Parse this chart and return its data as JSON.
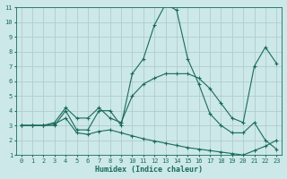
{
  "xlabel": "Humidex (Indice chaleur)",
  "xlim": [
    -0.5,
    23.5
  ],
  "ylim": [
    1,
    11
  ],
  "xticks": [
    0,
    1,
    2,
    3,
    4,
    5,
    6,
    7,
    8,
    9,
    10,
    11,
    12,
    13,
    14,
    15,
    16,
    17,
    18,
    19,
    20,
    21,
    22,
    23
  ],
  "yticks": [
    1,
    2,
    3,
    4,
    5,
    6,
    7,
    8,
    9,
    10,
    11
  ],
  "background_color": "#cce8e8",
  "line_color": "#1a6b5a",
  "grid_color": "#b0cccc",
  "line1_x": [
    0,
    1,
    2,
    3,
    4,
    5,
    6,
    7,
    8,
    9,
    10,
    11,
    12,
    13,
    14,
    15,
    16,
    17,
    18,
    19,
    20,
    21,
    22,
    23
  ],
  "line1_y": [
    3,
    3,
    3,
    3,
    4,
    2.7,
    2.7,
    4,
    4,
    3,
    6.5,
    7.5,
    9.8,
    11.2,
    10.8,
    7.5,
    5.8,
    3.8,
    3,
    2.5,
    2.5,
    3.2,
    2,
    1.4
  ],
  "line2_x": [
    0,
    1,
    2,
    3,
    4,
    5,
    6,
    7,
    8,
    9,
    10,
    11,
    12,
    13,
    14,
    15,
    16,
    17,
    18,
    19,
    20,
    21,
    22,
    23
  ],
  "line2_y": [
    3,
    3,
    3,
    3.2,
    4.2,
    3.5,
    3.5,
    4.2,
    3.5,
    3.2,
    5.0,
    5.8,
    6.2,
    6.5,
    6.5,
    6.5,
    6.2,
    5.5,
    4.5,
    3.5,
    3.2,
    7.0,
    8.3,
    7.2
  ],
  "line3_x": [
    0,
    1,
    2,
    3,
    4,
    5,
    6,
    7,
    8,
    9,
    10,
    11,
    12,
    13,
    14,
    15,
    16,
    17,
    18,
    19,
    20,
    21,
    22,
    23
  ],
  "line3_y": [
    3,
    3,
    3,
    3.1,
    3.5,
    2.5,
    2.4,
    2.6,
    2.7,
    2.5,
    2.3,
    2.1,
    1.95,
    1.8,
    1.65,
    1.5,
    1.4,
    1.3,
    1.2,
    1.1,
    1.0,
    1.3,
    1.6,
    2.0
  ]
}
